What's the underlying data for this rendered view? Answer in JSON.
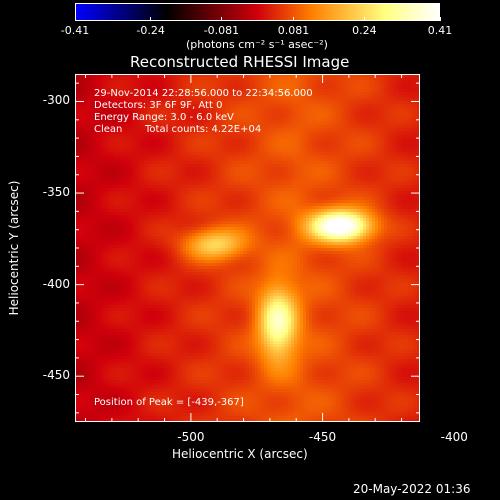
{
  "chart_data": {
    "type": "heatmap",
    "title": "Reconstructed RHESSI Image",
    "xlabel": "Heliocentric X (arcsec)",
    "ylabel": "Heliocentric Y (arcsec)",
    "xlim": [
      -544,
      -413
    ],
    "ylim": [
      -475,
      -285
    ],
    "x_ticks": [
      "-500",
      "-450",
      "-400"
    ],
    "x_tick_values": [
      -500,
      -450,
      -400
    ],
    "y_ticks": [
      "-300",
      "-350",
      "-400",
      "-450"
    ],
    "y_tick_values": [
      -300,
      -350,
      -400,
      -450
    ],
    "colorbar": {
      "ticks": [
        "-0.41",
        "-0.24",
        "-0.081",
        "0.081",
        "0.24",
        "0.41"
      ],
      "tick_values": [
        -0.41,
        -0.24,
        -0.081,
        0.081,
        0.24,
        0.41
      ],
      "range": [
        -0.41,
        0.41
      ],
      "unit_label": "(photons cm⁻² s⁻¹ asec⁻²)"
    },
    "colormap_colors": [
      "#0000ff",
      "#000000",
      "#d0000b",
      "#ff8000",
      "#ffff80",
      "#ffffff"
    ],
    "sources": [
      {
        "x": -443,
        "y": -368,
        "peak": 0.41
      },
      {
        "x": -467,
        "y": -421,
        "peak": 0.27
      },
      {
        "x": -491,
        "y": -378,
        "peak": 0.19
      }
    ],
    "annotations": {
      "time": "29-Nov-2014 22:28:56.000 to 22:34:56.000",
      "detectors": "Detectors: 3F 6F 9F, Att 0",
      "energy": "Energy Range: 3.0 - 6.0 keV",
      "clean": "Clean",
      "counts": "Total counts: 4.22E+04",
      "peak_position": "Position of Peak = [-439,-367]"
    }
  },
  "footer_timestamp": "20-May-2022 01:36"
}
